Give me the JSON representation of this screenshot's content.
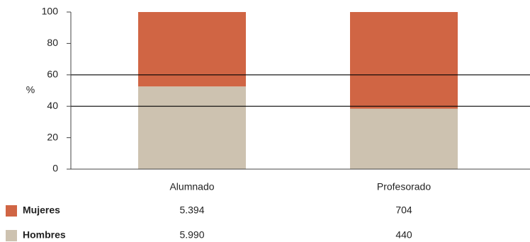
{
  "chart_data": {
    "type": "stacked_percent_bar",
    "categories": [
      "Alumnado",
      "Profesorado"
    ],
    "y_label": "%",
    "series": [
      {
        "name": "Mujeres",
        "color": "#d06544",
        "values": [
          5394,
          704
        ],
        "value_labels": [
          "5.394",
          "704"
        ]
      },
      {
        "name": "Hombres",
        "color": "#cdc2b0",
        "values": [
          5990,
          440
        ],
        "value_labels": [
          "5.990",
          "440"
        ]
      }
    ],
    "ylim": [
      0,
      100
    ],
    "yticks": [
      0,
      20,
      40,
      60,
      80,
      100
    ],
    "hlines": [
      40,
      60
    ]
  }
}
